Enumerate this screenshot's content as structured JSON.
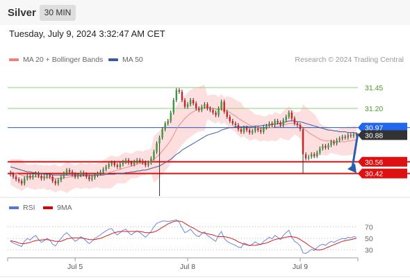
{
  "header": {
    "instrument": "Silver",
    "timeframe": "30 MIN"
  },
  "timestamp": "Tuesday, July 9, 2024 3:32:47 AM CET",
  "legend": {
    "ma20": {
      "label": "MA 20 + Bollinger Bands",
      "color": "#f08080"
    },
    "ma50": {
      "label": "MA 50",
      "color": "#3a5a9a"
    }
  },
  "copyright": "Research © 2024 Trading Central",
  "rsi_legend": {
    "rsi": {
      "label": "RSI",
      "color": "#5577dd"
    },
    "ma9": {
      "label": "9MA",
      "color": "#dd0000"
    }
  },
  "colors": {
    "up_candle": "#3a9a3a",
    "down_candle": "#cc2222",
    "resistance": "#8fd17a",
    "support": "#dd1111",
    "current": "#2255cc",
    "current_label_bg": "#2266ee",
    "price_label_bg": "#333333",
    "bb_fill": "#fcd4d4",
    "arrow": "#2b5faa"
  },
  "chart_data": {
    "type": "candlestick",
    "ylim": [
      30.15,
      31.7
    ],
    "x_ticks": [
      "Jul 5",
      "Jul 8",
      "Jul 9"
    ],
    "levels": [
      {
        "label": "31.45",
        "value": 31.45,
        "kind": "resistance"
      },
      {
        "label": "31.20",
        "value": 31.2,
        "kind": "resistance"
      },
      {
        "label": "30.97",
        "value": 30.97,
        "kind": "current"
      },
      {
        "label": "30.88",
        "value": 30.88,
        "kind": "last"
      },
      {
        "label": "30.56",
        "value": 30.56,
        "kind": "support"
      },
      {
        "label": "30.42",
        "value": 30.42,
        "kind": "support"
      }
    ],
    "forecast_arrow": {
      "from": 30.9,
      "to": 30.44,
      "direction": "down"
    },
    "candles_close": [
      30.41,
      30.38,
      30.35,
      30.33,
      30.3,
      30.36,
      30.39,
      30.37,
      30.4,
      30.42,
      30.39,
      30.36,
      30.38,
      30.4,
      30.38,
      30.33,
      30.3,
      30.34,
      30.38,
      30.42,
      30.46,
      30.44,
      30.41,
      30.38,
      30.4,
      30.43,
      30.41,
      30.38,
      30.35,
      30.37,
      30.4,
      30.42,
      30.44,
      30.47,
      30.5,
      30.53,
      30.55,
      30.52,
      30.5,
      30.53,
      30.56,
      30.58,
      30.55,
      30.53,
      30.56,
      30.58,
      30.57,
      30.55,
      30.52,
      30.55,
      30.6,
      30.68,
      30.78,
      30.85,
      30.95,
      31.02,
      31.05,
      31.15,
      31.3,
      31.42,
      31.4,
      31.3,
      31.22,
      31.25,
      31.3,
      31.26,
      31.2,
      31.18,
      31.22,
      31.25,
      31.2,
      31.18,
      31.15,
      31.12,
      31.2,
      31.28,
      31.16,
      31.1,
      31.05,
      31.02,
      31.0,
      30.95,
      30.92,
      30.97,
      30.94,
      30.91,
      30.93,
      30.96,
      30.94,
      30.92,
      30.97,
      30.99,
      31.02,
      31.0,
      31.05,
      31.03,
      31.0,
      31.06,
      31.1,
      31.15,
      31.08,
      31.02,
      31.0,
      30.95,
      30.65,
      30.6,
      30.62,
      30.65,
      30.63,
      30.67,
      30.72,
      30.75,
      30.73,
      30.76,
      30.8,
      30.78,
      30.82,
      30.84,
      30.86,
      30.85,
      30.88,
      30.87,
      30.89,
      30.88
    ],
    "ma20": [
      30.44,
      30.43,
      30.42,
      30.41,
      30.4,
      30.39,
      30.39,
      30.38,
      30.38,
      30.38,
      30.38,
      30.38,
      30.38,
      30.37,
      30.37,
      30.37,
      30.36,
      30.36,
      30.36,
      30.37,
      30.37,
      30.38,
      30.38,
      30.38,
      30.39,
      30.39,
      30.39,
      30.39,
      30.39,
      30.39,
      30.39,
      30.4,
      30.4,
      30.41,
      30.42,
      30.43,
      30.44,
      30.45,
      30.46,
      30.47,
      30.48,
      30.49,
      30.5,
      30.51,
      30.52,
      30.53,
      30.54,
      30.54,
      30.55,
      30.56,
      30.57,
      30.59,
      30.62,
      30.65,
      30.69,
      30.73,
      30.77,
      30.82,
      30.88,
      30.95,
      31.0,
      31.04,
      31.08,
      31.11,
      31.14,
      31.16,
      31.18,
      31.19,
      31.2,
      31.21,
      31.21,
      31.21,
      31.2,
      31.19,
      31.19,
      31.19,
      31.18,
      31.17,
      31.15,
      31.13,
      31.11,
      31.08,
      31.06,
      31.04,
      31.02,
      31.0,
      30.99,
      30.98,
      30.97,
      30.96,
      30.96,
      30.96,
      30.97,
      30.97,
      30.98,
      30.98,
      30.99,
      31.0,
      31.01,
      31.02,
      31.02,
      31.02,
      31.01,
      31.0,
      30.97,
      30.94,
      30.91,
      30.89,
      30.87,
      30.85,
      30.83,
      30.82,
      30.81,
      30.81,
      30.81,
      30.8,
      30.8,
      30.8,
      30.8,
      30.8,
      30.81,
      30.81,
      30.82,
      30.82
    ],
    "ma50": [
      30.5,
      30.49,
      30.48,
      30.47,
      30.46,
      30.45,
      30.44,
      30.44,
      30.43,
      30.43,
      30.42,
      30.42,
      30.41,
      30.41,
      30.41,
      30.4,
      30.4,
      30.4,
      30.4,
      30.4,
      30.4,
      30.4,
      30.4,
      30.4,
      30.4,
      30.4,
      30.4,
      30.4,
      30.4,
      30.4,
      30.4,
      30.4,
      30.4,
      30.4,
      30.41,
      30.41,
      30.41,
      30.41,
      30.42,
      30.42,
      30.42,
      30.43,
      30.43,
      30.44,
      30.44,
      30.45,
      30.45,
      30.46,
      30.46,
      30.47,
      30.48,
      30.49,
      30.5,
      30.51,
      30.53,
      30.55,
      30.57,
      30.59,
      30.62,
      30.65,
      30.67,
      30.7,
      30.72,
      30.74,
      30.76,
      30.78,
      30.8,
      30.82,
      30.84,
      30.86,
      30.88,
      30.89,
      30.9,
      30.91,
      30.92,
      30.94,
      30.95,
      30.96,
      30.97,
      30.97,
      30.98,
      30.98,
      30.98,
      30.98,
      30.98,
      30.98,
      30.98,
      30.99,
      30.99,
      30.99,
      31.0,
      31.0,
      31.0,
      31.01,
      31.01,
      31.02,
      31.02,
      31.03,
      31.04,
      31.05,
      31.05,
      31.05,
      31.04,
      31.04,
      31.03,
      31.02,
      31.01,
      31.0,
      30.99,
      30.98,
      30.97,
      30.96,
      30.95,
      30.94,
      30.94,
      30.93,
      30.93,
      30.92,
      30.92,
      30.92,
      30.91,
      30.91,
      30.91,
      30.9
    ],
    "rsi": {
      "levels": [
        70,
        50,
        30
      ],
      "ylim": [
        20,
        80
      ],
      "rsi": [
        45,
        42,
        40,
        38,
        36,
        45,
        50,
        47,
        52,
        55,
        48,
        43,
        46,
        50,
        47,
        40,
        37,
        44,
        50,
        56,
        60,
        55,
        50,
        45,
        48,
        53,
        50,
        45,
        41,
        45,
        50,
        53,
        56,
        60,
        63,
        66,
        67,
        60,
        56,
        60,
        64,
        66,
        60,
        56,
        60,
        63,
        60,
        56,
        52,
        57,
        62,
        70,
        76,
        78,
        80,
        80,
        79,
        80,
        81,
        82,
        78,
        68,
        60,
        62,
        66,
        60,
        55,
        53,
        58,
        61,
        55,
        52,
        48,
        45,
        55,
        62,
        50,
        45,
        42,
        40,
        38,
        35,
        34,
        42,
        40,
        37,
        40,
        44,
        41,
        39,
        45,
        48,
        52,
        49,
        55,
        52,
        48,
        55,
        60,
        64,
        52,
        45,
        42,
        37,
        25,
        24,
        27,
        31,
        29,
        34,
        38,
        40,
        38,
        42,
        45,
        43,
        46,
        48,
        50,
        49,
        52,
        51,
        53,
        52
      ],
      "ma9": [
        46,
        45,
        44,
        42,
        41,
        41,
        42,
        43,
        45,
        46,
        47,
        47,
        48,
        48,
        47,
        46,
        45,
        45,
        45,
        47,
        49,
        50,
        51,
        51,
        51,
        51,
        50,
        49,
        48,
        48,
        48,
        49,
        50,
        52,
        54,
        56,
        58,
        60,
        61,
        62,
        62,
        62,
        62,
        62,
        62,
        62,
        62,
        61,
        60,
        60,
        60,
        61,
        63,
        66,
        69,
        72,
        75,
        77,
        79,
        80,
        80,
        79,
        76,
        73,
        70,
        68,
        65,
        62,
        60,
        59,
        58,
        57,
        56,
        54,
        53,
        53,
        53,
        52,
        51,
        49,
        47,
        44,
        42,
        40,
        39,
        38,
        38,
        38,
        39,
        40,
        41,
        42,
        44,
        46,
        48,
        49,
        50,
        51,
        52,
        53,
        53,
        52,
        51,
        48,
        45,
        42,
        38,
        35,
        32,
        30,
        30,
        31,
        33,
        35,
        37,
        39,
        41,
        43,
        45,
        46,
        47,
        48,
        49,
        50
      ]
    }
  }
}
